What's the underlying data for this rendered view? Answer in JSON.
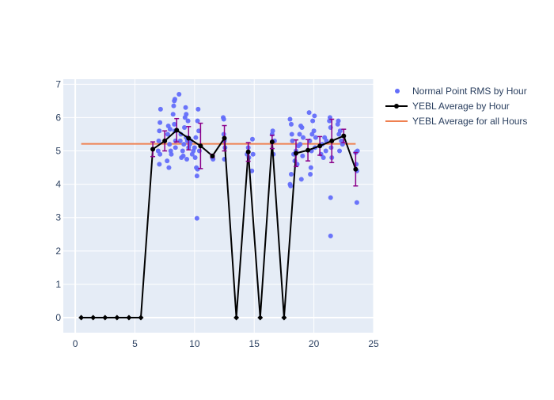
{
  "chart_data": {
    "type": "scatter",
    "x_axis": {
      "range": [
        -1,
        25
      ],
      "ticks": [
        0,
        5,
        10,
        15,
        20,
        25
      ],
      "label": ""
    },
    "y_axis": {
      "range": [
        -0.45,
        7.15
      ],
      "ticks": [
        0,
        1,
        2,
        3,
        4,
        5,
        6,
        7
      ],
      "label": ""
    },
    "grid": true,
    "legend_position": "top-right",
    "colors": {
      "points": "#636efa",
      "average_line": "#000000",
      "error_bars": "#8b008b",
      "overall_line": "#ef8050",
      "plot_bg": "#e5ecf6",
      "grid": "#ffffff",
      "text": "#2a3f5f"
    },
    "series": [
      {
        "name": "Normal Point RMS by Hour",
        "kind": "markers",
        "points": [
          [
            6.95,
            5.0
          ],
          [
            7.0,
            5.3
          ],
          [
            7.05,
            4.6
          ],
          [
            7.05,
            5.6
          ],
          [
            7.1,
            5.85
          ],
          [
            7.15,
            6.25
          ],
          [
            7.1,
            4.9
          ],
          [
            7.7,
            4.7
          ],
          [
            7.75,
            5.5
          ],
          [
            7.8,
            5.75
          ],
          [
            7.85,
            4.5
          ],
          [
            7.9,
            5.2
          ],
          [
            7.95,
            5.65
          ],
          [
            8.0,
            5.0
          ],
          [
            8.05,
            4.9
          ],
          [
            8.2,
            6.1
          ],
          [
            8.25,
            6.35
          ],
          [
            8.3,
            6.5
          ],
          [
            8.35,
            6.55
          ],
          [
            8.3,
            5.8
          ],
          [
            8.35,
            5.6
          ],
          [
            8.4,
            5.1
          ],
          [
            8.4,
            5.3
          ],
          [
            8.7,
            6.7
          ],
          [
            8.8,
            5.3
          ],
          [
            8.85,
            5.5
          ],
          [
            8.9,
            4.8
          ],
          [
            9.0,
            5.0
          ],
          [
            9.05,
            4.85
          ],
          [
            9.1,
            5.2
          ],
          [
            9.15,
            5.7
          ],
          [
            9.2,
            6.0
          ],
          [
            9.25,
            6.3
          ],
          [
            9.3,
            6.1
          ],
          [
            9.3,
            5.4
          ],
          [
            9.35,
            4.75
          ],
          [
            9.4,
            5.3
          ],
          [
            9.45,
            5.9
          ],
          [
            9.5,
            5.1
          ],
          [
            9.6,
            5.2
          ],
          [
            9.7,
            5.3
          ],
          [
            9.8,
            4.9
          ],
          [
            9.9,
            5.0
          ],
          [
            10.0,
            5.1
          ],
          [
            10.05,
            4.8
          ],
          [
            10.1,
            5.4
          ],
          [
            10.15,
            4.5
          ],
          [
            10.2,
            4.25
          ],
          [
            10.25,
            4.45
          ],
          [
            10.25,
            5.9
          ],
          [
            10.3,
            6.25
          ],
          [
            10.35,
            5.6
          ],
          [
            10.2,
            2.98
          ],
          [
            10.4,
            5.0
          ],
          [
            11.5,
            4.8
          ],
          [
            11.55,
            4.75
          ],
          [
            12.4,
            6.0
          ],
          [
            12.45,
            5.95
          ],
          [
            12.5,
            4.75
          ],
          [
            12.55,
            5.1
          ],
          [
            12.45,
            5.5
          ],
          [
            12.5,
            5.3
          ],
          [
            14.4,
            4.9
          ],
          [
            14.5,
            5.1
          ],
          [
            14.55,
            4.8
          ],
          [
            14.8,
            4.4
          ],
          [
            14.85,
            5.35
          ],
          [
            14.9,
            4.9
          ],
          [
            16.5,
            5.5
          ],
          [
            16.55,
            5.6
          ],
          [
            16.6,
            4.9
          ],
          [
            16.7,
            5.3
          ],
          [
            18.0,
            4.0
          ],
          [
            18.05,
            3.95
          ],
          [
            18.1,
            4.3
          ],
          [
            18.0,
            5.95
          ],
          [
            18.1,
            5.8
          ],
          [
            18.15,
            5.5
          ],
          [
            18.2,
            5.3
          ],
          [
            18.3,
            4.9
          ],
          [
            18.4,
            4.7
          ],
          [
            18.5,
            5.0
          ],
          [
            18.6,
            4.6
          ],
          [
            18.7,
            5.15
          ],
          [
            18.8,
            5.5
          ],
          [
            18.85,
            5.2
          ],
          [
            18.9,
            5.75
          ],
          [
            18.95,
            4.15
          ],
          [
            19.0,
            5.7
          ],
          [
            19.05,
            4.85
          ],
          [
            19.1,
            5.4
          ],
          [
            19.6,
            6.15
          ],
          [
            19.65,
            5.3
          ],
          [
            19.7,
            4.3
          ],
          [
            19.75,
            4.5
          ],
          [
            19.8,
            5.0
          ],
          [
            19.85,
            5.5
          ],
          [
            19.9,
            5.9
          ],
          [
            20.0,
            5.6
          ],
          [
            20.05,
            6.05
          ],
          [
            20.1,
            5.1
          ],
          [
            20.15,
            5.4
          ],
          [
            20.6,
            4.9
          ],
          [
            20.7,
            5.2
          ],
          [
            20.8,
            4.8
          ],
          [
            20.9,
            5.4
          ],
          [
            21.0,
            5.0
          ],
          [
            21.05,
            5.3
          ],
          [
            21.3,
            5.9
          ],
          [
            21.35,
            6.0
          ],
          [
            21.4,
            5.7
          ],
          [
            21.4,
            3.6
          ],
          [
            21.4,
            2.45
          ],
          [
            21.45,
            5.1
          ],
          [
            21.5,
            4.8
          ],
          [
            22.0,
            5.8
          ],
          [
            22.05,
            5.9
          ],
          [
            22.1,
            5.5
          ],
          [
            22.15,
            5.0
          ],
          [
            22.2,
            5.6
          ],
          [
            22.3,
            5.3
          ],
          [
            22.4,
            5.2
          ],
          [
            23.5,
            4.95
          ],
          [
            23.55,
            4.6
          ],
          [
            23.6,
            4.4
          ],
          [
            23.6,
            3.45
          ],
          [
            23.65,
            5.0
          ]
        ]
      },
      {
        "name": "YEBL Average by Hour",
        "kind": "lines+markers",
        "x": [
          0.5,
          1.5,
          2.5,
          3.5,
          4.5,
          5.5,
          6.5,
          7.5,
          8.5,
          9.5,
          10.5,
          11.5,
          12.5,
          13.5,
          14.5,
          15.5,
          16.5,
          17.5,
          18.5,
          19.5,
          20.5,
          21.5,
          22.5,
          23.5
        ],
        "y": [
          0,
          0,
          0,
          0,
          0,
          0,
          5.05,
          5.3,
          5.62,
          5.38,
          5.15,
          4.85,
          5.38,
          0,
          4.97,
          0,
          5.27,
          0,
          4.93,
          5.02,
          5.15,
          5.3,
          5.45,
          4.45
        ],
        "error": [
          null,
          null,
          null,
          null,
          null,
          null,
          0.22,
          0.3,
          0.35,
          0.35,
          0.68,
          0.05,
          0.38,
          null,
          0.28,
          null,
          0.2,
          null,
          0.4,
          0.32,
          0.28,
          0.65,
          0.2,
          0.5
        ]
      },
      {
        "name": "YEBL Average for all Hours",
        "kind": "line",
        "x": [
          0.5,
          23.5
        ],
        "y": [
          5.21,
          5.21
        ]
      }
    ]
  }
}
